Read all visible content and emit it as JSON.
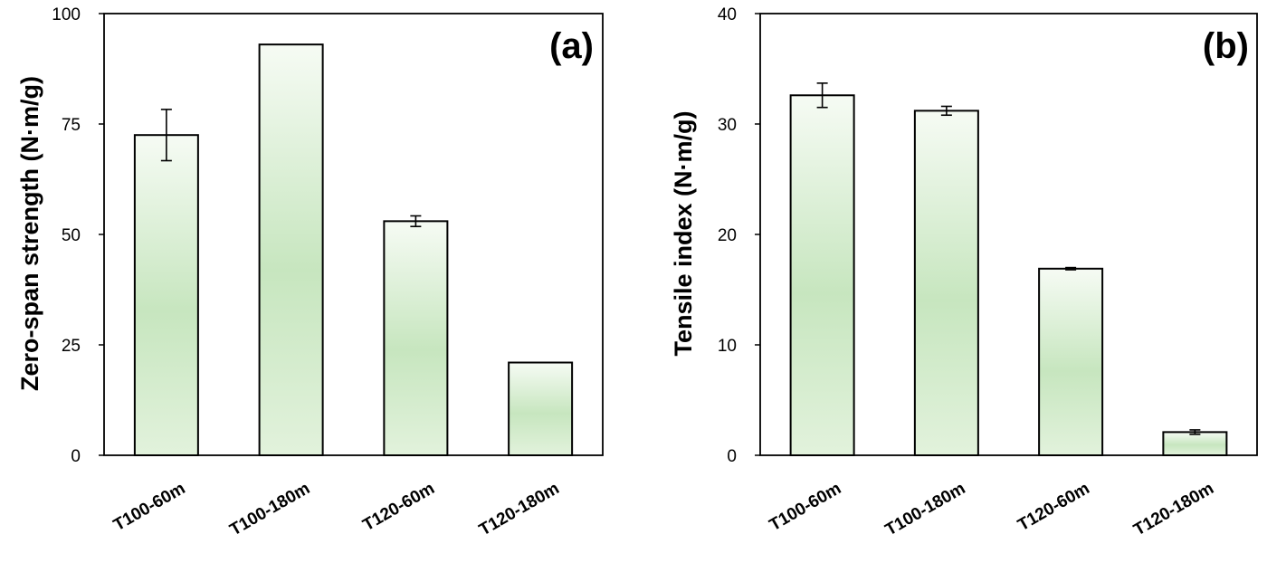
{
  "colors": {
    "bar_top": "#f6fbf4",
    "bar_mid": "#c7e6bf",
    "bar_bottom": "#e2f2dc",
    "stroke": "#000000"
  },
  "chart_data": [
    {
      "type": "bar",
      "panel_label": "(a)",
      "categories": [
        "T100-60m",
        "T100-180m",
        "T120-60m",
        "T120-180m"
      ],
      "values": [
        72.5,
        93.0,
        53.0,
        21.0
      ],
      "errors": [
        5.8,
        0,
        1.2,
        0
      ],
      "ylim": [
        0,
        100
      ],
      "yticks": [
        "0",
        "25",
        "50",
        "75",
        "100"
      ],
      "xlabel": "",
      "ylabel": "Zero-span strength (N·m/g)"
    },
    {
      "type": "bar",
      "panel_label": "(b)",
      "categories": [
        "T100-60m",
        "T100-180m",
        "T120-60m",
        "T120-180m"
      ],
      "values": [
        32.6,
        31.2,
        16.9,
        2.1
      ],
      "errors": [
        1.1,
        0.4,
        0.1,
        0.2
      ],
      "ylim": [
        0,
        40
      ],
      "yticks": [
        "0",
        "10",
        "20",
        "30",
        "40"
      ],
      "xlabel": "",
      "ylabel": "Tensile index (N·m/g)"
    }
  ]
}
